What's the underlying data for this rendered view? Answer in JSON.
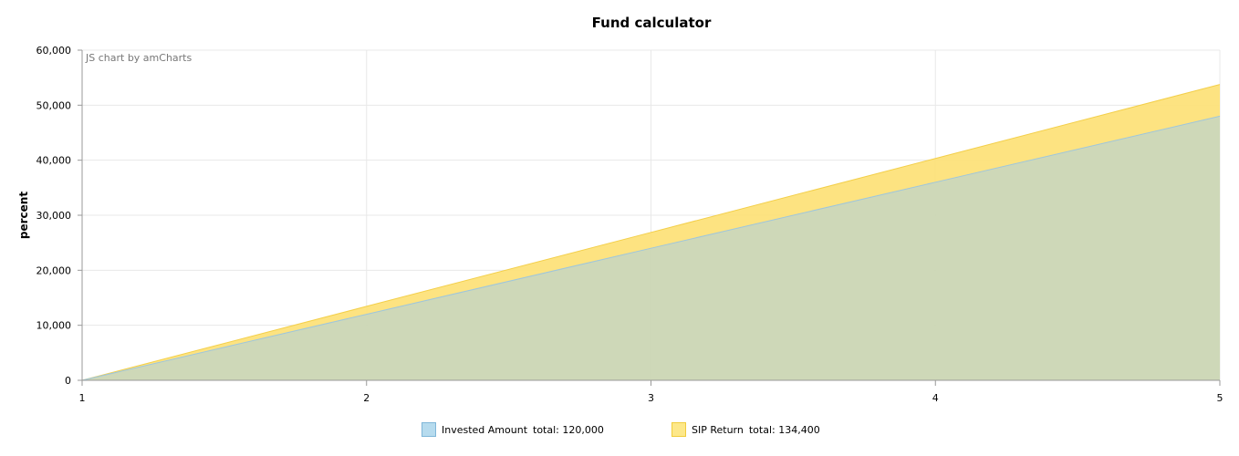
{
  "chart_data": {
    "type": "area",
    "title": "Fund calculator",
    "credit": "JS chart by amCharts",
    "ylabel": "percent",
    "xlabel": "",
    "x": [
      1,
      2,
      3,
      4,
      5
    ],
    "x_ticks": [
      "1",
      "2",
      "3",
      "4",
      "5"
    ],
    "ylim": [
      0,
      60000
    ],
    "y_ticks": [
      "0",
      "10,000",
      "20,000",
      "30,000",
      "40,000",
      "50,000",
      "60,000"
    ],
    "y_tick_values": [
      0,
      10000,
      20000,
      30000,
      40000,
      50000,
      60000
    ],
    "grid": true,
    "legend_position": "bottom",
    "series": [
      {
        "name": "Invested Amount",
        "values": [
          0,
          12000,
          24000,
          36000,
          48000
        ],
        "color": "#a8cfe6",
        "total_label": "total: 120,000"
      },
      {
        "name": "SIP Return",
        "values": [
          0,
          13440,
          26880,
          40320,
          53760
        ],
        "color": "#fde073",
        "total_label": "total: 134,400"
      }
    ]
  }
}
